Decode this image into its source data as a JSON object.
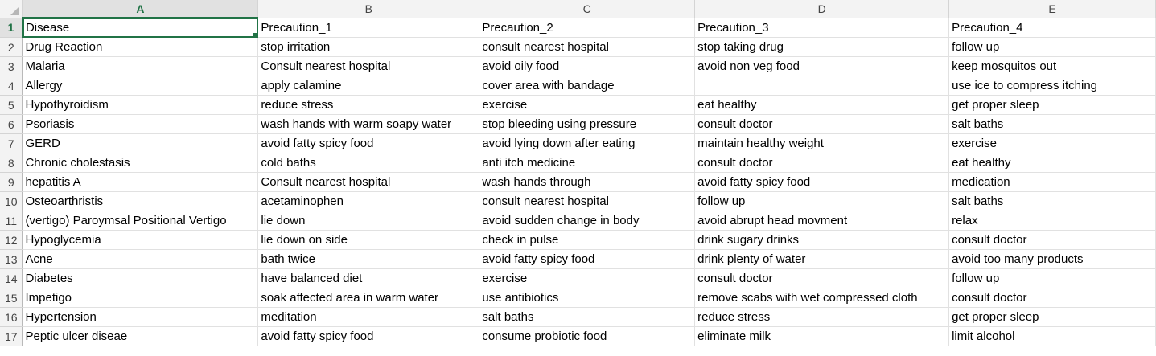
{
  "sheet": {
    "columns": [
      "A",
      "B",
      "C",
      "D",
      "E"
    ],
    "active_column": "A",
    "active_row": 1,
    "colors": {
      "accent": "#217346",
      "header_bg": "#f3f3f3",
      "grid": "#e1e1e1"
    },
    "rows": [
      [
        "Disease",
        "Precaution_1",
        "Precaution_2",
        "Precaution_3",
        "Precaution_4"
      ],
      [
        "Drug Reaction",
        "stop irritation",
        "consult nearest hospital",
        "stop taking drug",
        "follow up"
      ],
      [
        "Malaria",
        "Consult nearest hospital",
        "avoid oily food",
        "avoid non veg food",
        "keep mosquitos out"
      ],
      [
        "Allergy",
        "apply calamine",
        "cover area with bandage",
        "",
        "use ice to compress itching"
      ],
      [
        "Hypothyroidism",
        "reduce stress",
        "exercise",
        "eat healthy",
        "get proper sleep"
      ],
      [
        "Psoriasis",
        "wash hands with warm soapy water",
        "stop bleeding using pressure",
        "consult doctor",
        "salt baths"
      ],
      [
        "GERD",
        "avoid fatty spicy food",
        "avoid lying down after eating",
        "maintain healthy weight",
        "exercise"
      ],
      [
        "Chronic cholestasis",
        "cold baths",
        "anti itch medicine",
        "consult doctor",
        "eat healthy"
      ],
      [
        "hepatitis A",
        "Consult nearest hospital",
        "wash hands through",
        "avoid fatty spicy food",
        "medication"
      ],
      [
        "Osteoarthristis",
        "acetaminophen",
        "consult nearest hospital",
        "follow up",
        "salt baths"
      ],
      [
        "(vertigo) Paroymsal  Positional Vertigo",
        "lie down",
        "avoid sudden change in body",
        "avoid abrupt head movment",
        "relax"
      ],
      [
        "Hypoglycemia",
        "lie down on side",
        "check in pulse",
        "drink sugary drinks",
        "consult doctor"
      ],
      [
        "Acne",
        "bath twice",
        "avoid fatty spicy food",
        "drink plenty of water",
        "avoid too many products"
      ],
      [
        "Diabetes",
        "have balanced diet",
        "exercise",
        "consult doctor",
        "follow up"
      ],
      [
        "Impetigo",
        "soak affected area in warm water",
        "use antibiotics",
        "remove scabs with wet compressed cloth",
        "consult doctor"
      ],
      [
        "Hypertension",
        "meditation",
        "salt baths",
        "reduce stress",
        "get proper sleep"
      ],
      [
        "Peptic ulcer diseae",
        "avoid fatty spicy food",
        "consume probiotic food",
        "eliminate milk",
        "limit alcohol"
      ]
    ]
  }
}
